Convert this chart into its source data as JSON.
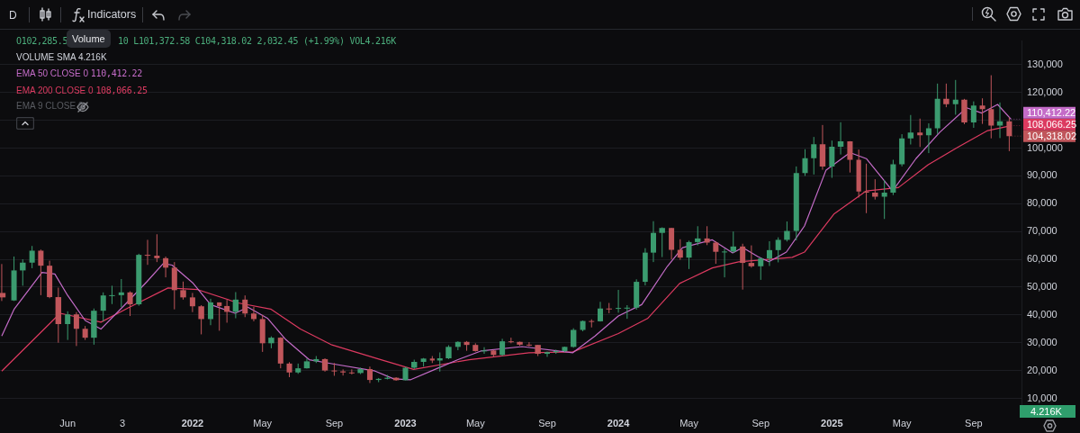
{
  "chart_data": {
    "type": "candlestick",
    "x": [
      "2021-02-08",
      "2021-03-01",
      "2021-03-16",
      "2021-04-01",
      "2021-04-16",
      "2021-05-01",
      "2021-05-16",
      "2021-06-01",
      "2021-06-16",
      "2021-07-01",
      "2021-07-16",
      "2021-08-01",
      "2021-08-16",
      "2021-09-01",
      "2021-09-16",
      "2021-10-01",
      "2021-10-16",
      "2021-11-01",
      "2021-11-16",
      "2021-12-01",
      "2021-12-16",
      "2022-01-01",
      "2022-01-16",
      "2022-02-01",
      "2022-02-16",
      "2022-03-01",
      "2022-03-16",
      "2022-04-01",
      "2022-04-16",
      "2022-05-01",
      "2022-05-16",
      "2022-06-01",
      "2022-06-16",
      "2022-07-01",
      "2022-07-16",
      "2022-08-01",
      "2022-08-16",
      "2022-09-01",
      "2022-09-16",
      "2022-10-01",
      "2022-10-16",
      "2022-11-01",
      "2022-11-16",
      "2022-12-01",
      "2022-12-16",
      "2023-01-01",
      "2023-01-16",
      "2023-02-01",
      "2023-02-16",
      "2023-03-01",
      "2023-03-16",
      "2023-04-01",
      "2023-04-16",
      "2023-05-01",
      "2023-05-16",
      "2023-06-01",
      "2023-06-16",
      "2023-07-01",
      "2023-07-16",
      "2023-08-01",
      "2023-08-16",
      "2023-09-01",
      "2023-09-16",
      "2023-10-01",
      "2023-10-16",
      "2023-11-01",
      "2023-11-16",
      "2023-12-01",
      "2023-12-16",
      "2024-01-01",
      "2024-01-16",
      "2024-02-01",
      "2024-02-16",
      "2024-03-01",
      "2024-03-16",
      "2024-04-01",
      "2024-04-16",
      "2024-05-01",
      "2024-05-16",
      "2024-06-01",
      "2024-06-16",
      "2024-07-01",
      "2024-07-16",
      "2024-08-01",
      "2024-08-16",
      "2024-09-01",
      "2024-09-16",
      "2024-10-01",
      "2024-10-16",
      "2024-11-01",
      "2024-11-16",
      "2024-12-01",
      "2024-12-16",
      "2025-01-01",
      "2025-01-16",
      "2025-02-01",
      "2025-02-16",
      "2025-03-01",
      "2025-03-16",
      "2025-04-01",
      "2025-04-16",
      "2025-05-01",
      "2025-05-16",
      "2025-06-01",
      "2025-06-16",
      "2025-07-01",
      "2025-07-16",
      "2025-08-01",
      "2025-08-16",
      "2025-09-01",
      "2025-09-16",
      "2025-10-01",
      "2025-10-16",
      "2025-11-01"
    ],
    "ohlc": [
      [
        47900,
        58300,
        45000,
        46300
      ],
      [
        45200,
        61000,
        45000,
        56000
      ],
      [
        56000,
        60000,
        50500,
        58800
      ],
      [
        58800,
        64800,
        56800,
        63100
      ],
      [
        63100,
        63500,
        47100,
        57700
      ],
      [
        57700,
        59500,
        46000,
        46400
      ],
      [
        46400,
        49800,
        30000,
        36700
      ],
      [
        36700,
        41300,
        31000,
        40200
      ],
      [
        40200,
        41000,
        28800,
        35000
      ],
      [
        35000,
        36000,
        31000,
        31800
      ],
      [
        31800,
        42300,
        29300,
        41500
      ],
      [
        41500,
        48100,
        37600,
        47000
      ],
      [
        47000,
        50500,
        43900,
        47100
      ],
      [
        47100,
        52900,
        42800,
        48100
      ],
      [
        48100,
        48500,
        39600,
        43800
      ],
      [
        43800,
        62000,
        43300,
        61600
      ],
      [
        61600,
        67000,
        58000,
        61300
      ],
      [
        61300,
        69000,
        59000,
        60400
      ],
      [
        60400,
        61000,
        53500,
        57000
      ],
      [
        57000,
        59000,
        42000,
        48900
      ],
      [
        48900,
        52000,
        45500,
        46300
      ],
      [
        46300,
        47900,
        41000,
        43100
      ],
      [
        43100,
        43500,
        33000,
        38500
      ],
      [
        38500,
        45800,
        36300,
        44500
      ],
      [
        44500,
        44500,
        34300,
        43200
      ],
      [
        43200,
        45400,
        37200,
        41100
      ],
      [
        41100,
        48200,
        38800,
        45500
      ],
      [
        45500,
        47000,
        39200,
        40500
      ],
      [
        40500,
        42900,
        37700,
        38500
      ],
      [
        38500,
        40000,
        26700,
        29800
      ],
      [
        29800,
        32300,
        28000,
        31800
      ],
      [
        31800,
        32000,
        20800,
        22500
      ],
      [
        22500,
        23000,
        17600,
        19300
      ],
      [
        19300,
        22500,
        18800,
        20800
      ],
      [
        20800,
        24300,
        20700,
        23300
      ],
      [
        23300,
        25200,
        22700,
        24100
      ],
      [
        24100,
        24400,
        19600,
        20000
      ],
      [
        20000,
        22700,
        18100,
        19700
      ],
      [
        19700,
        20400,
        18200,
        19300
      ],
      [
        19300,
        20400,
        18600,
        19100
      ],
      [
        19100,
        21000,
        18700,
        20500
      ],
      [
        20500,
        21400,
        15500,
        16600
      ],
      [
        16600,
        17300,
        15800,
        17000
      ],
      [
        17000,
        18400,
        16800,
        17400
      ],
      [
        17400,
        17600,
        16300,
        16500
      ],
      [
        16500,
        21300,
        16500,
        21000
      ],
      [
        21000,
        23900,
        20500,
        23100
      ],
      [
        23100,
        24500,
        21400,
        24300
      ],
      [
        24300,
        25200,
        22700,
        23600
      ],
      [
        23600,
        26500,
        19600,
        24400
      ],
      [
        24400,
        29100,
        24100,
        28500
      ],
      [
        28500,
        30500,
        27300,
        30300
      ],
      [
        30300,
        30600,
        27100,
        29200
      ],
      [
        29200,
        29800,
        26800,
        27000
      ],
      [
        27000,
        28400,
        26000,
        27200
      ],
      [
        27200,
        27400,
        24800,
        25600
      ],
      [
        25600,
        31400,
        25200,
        30500
      ],
      [
        30500,
        31800,
        29800,
        30300
      ],
      [
        30300,
        30400,
        28900,
        29300
      ],
      [
        29300,
        30200,
        28700,
        29200
      ],
      [
        29200,
        29200,
        25200,
        26000
      ],
      [
        26000,
        26800,
        24900,
        26600
      ],
      [
        26600,
        27500,
        26000,
        27000
      ],
      [
        27000,
        28600,
        26600,
        28500
      ],
      [
        28500,
        35200,
        28200,
        34600
      ],
      [
        34600,
        38000,
        34100,
        37800
      ],
      [
        37800,
        38400,
        35500,
        37700
      ],
      [
        37700,
        44700,
        37600,
        42300
      ],
      [
        42300,
        44300,
        40600,
        42200
      ],
      [
        42200,
        49000,
        40800,
        42500
      ],
      [
        42500,
        43500,
        38600,
        42600
      ],
      [
        42600,
        52800,
        41900,
        51900
      ],
      [
        51900,
        64000,
        50600,
        62400
      ],
      [
        62400,
        73700,
        59000,
        69500
      ],
      [
        69500,
        71500,
        60800,
        71300
      ],
      [
        71300,
        71300,
        60000,
        63400
      ],
      [
        63400,
        67200,
        59800,
        60600
      ],
      [
        60600,
        66700,
        56500,
        66200
      ],
      [
        66200,
        71900,
        65000,
        67500
      ],
      [
        67500,
        71900,
        65100,
        66000
      ],
      [
        66000,
        66500,
        58400,
        62700
      ],
      [
        62700,
        63800,
        53500,
        62800
      ],
      [
        62800,
        70000,
        62300,
        64600
      ],
      [
        64600,
        65600,
        49100,
        58700
      ],
      [
        58700,
        65000,
        57000,
        57500
      ],
      [
        57500,
        60600,
        52600,
        60300
      ],
      [
        60300,
        66500,
        57600,
        63300
      ],
      [
        63300,
        67900,
        58900,
        67000
      ],
      [
        67000,
        73600,
        66400,
        70200
      ],
      [
        70200,
        93400,
        66800,
        91000
      ],
      [
        91000,
        99600,
        90000,
        96400
      ],
      [
        96400,
        104000,
        90500,
        101400
      ],
      [
        101400,
        108300,
        92200,
        93400
      ],
      [
        93400,
        102700,
        89300,
        100500
      ],
      [
        100500,
        109300,
        97700,
        102400
      ],
      [
        102400,
        102500,
        91200,
        95800
      ],
      [
        95800,
        99500,
        82200,
        84400
      ],
      [
        84400,
        94400,
        76600,
        84000
      ],
      [
        84000,
        88800,
        81500,
        82500
      ],
      [
        82500,
        88500,
        74500,
        84000
      ],
      [
        84000,
        95800,
        83100,
        94200
      ],
      [
        94200,
        105000,
        93400,
        103500
      ],
      [
        103500,
        111900,
        101300,
        105600
      ],
      [
        105600,
        110600,
        100400,
        104600
      ],
      [
        104600,
        108900,
        98200,
        107100
      ],
      [
        107100,
        123200,
        105100,
        117700
      ],
      [
        117700,
        123200,
        114700,
        115800
      ],
      [
        115800,
        124500,
        112000,
        117400
      ],
      [
        117400,
        117700,
        108600,
        109200
      ],
      [
        109200,
        116800,
        107300,
        115300
      ],
      [
        115300,
        117900,
        108700,
        114000
      ],
      [
        114000,
        126200,
        103500,
        108100
      ],
      [
        108100,
        116400,
        103600,
        109600
      ],
      [
        109600,
        111000,
        98900,
        104318.02
      ]
    ],
    "series": [
      {
        "name": "EMA 50 CLOSE 0",
        "type": "line",
        "color": "#c46cc8",
        "x": [
          "2021-02-08",
          "2021-03-01",
          "2021-04-18",
          "2021-05-10",
          "2021-06-01",
          "2021-07-01",
          "2021-07-28",
          "2021-09-10",
          "2021-10-15",
          "2021-11-12",
          "2021-11-27",
          "2022-01-01",
          "2022-02-01",
          "2022-03-15",
          "2022-04-06",
          "2022-05-10",
          "2022-06-10",
          "2022-07-20",
          "2022-09-01",
          "2022-11-10",
          "2022-12-12",
          "2023-01-10",
          "2023-02-25",
          "2023-04-01",
          "2023-05-10",
          "2023-07-20",
          "2023-10-15",
          "2023-11-22",
          "2024-01-01",
          "2024-02-10",
          "2024-03-25",
          "2024-04-20",
          "2024-06-10",
          "2024-07-15",
          "2024-08-01",
          "2024-08-27",
          "2024-09-15",
          "2024-10-15",
          "2024-11-15",
          "2024-12-22",
          "2025-02-01",
          "2025-03-01",
          "2025-04-15",
          "2025-05-25",
          "2025-07-05",
          "2025-08-20",
          "2025-09-15",
          "2025-10-12",
          "2025-11-04"
        ],
        "values": [
          32400,
          42000,
          55300,
          54700,
          47000,
          38000,
          34900,
          44300,
          52000,
          58500,
          57900,
          51600,
          43700,
          40600,
          42800,
          38700,
          31100,
          23900,
          22300,
          19800,
          17000,
          16700,
          20800,
          23900,
          27000,
          28600,
          26400,
          32400,
          39600,
          43700,
          57500,
          64200,
          67000,
          62300,
          64200,
          61000,
          59100,
          62600,
          72000,
          92100,
          98400,
          96200,
          84600,
          96200,
          105700,
          114500,
          112600,
          115700,
          110412.22
        ]
      },
      {
        "name": "EMA 200 CLOSE 0",
        "type": "line",
        "color": "#dc3a60",
        "x": [
          "2021-02-08",
          "2021-05-19",
          "2021-07-28",
          "2021-09-15",
          "2021-11-20",
          "2022-01-10",
          "2022-03-20",
          "2022-05-15",
          "2022-07-05",
          "2022-08-28",
          "2022-11-15",
          "2023-01-15",
          "2023-04-20",
          "2023-08-01",
          "2023-10-15",
          "2024-01-01",
          "2024-02-20",
          "2024-04-15",
          "2024-06-10",
          "2024-07-25",
          "2024-10-25",
          "2024-11-15",
          "2025-01-05",
          "2025-03-01",
          "2025-04-25",
          "2025-06-15",
          "2025-08-05",
          "2025-09-25",
          "2025-11-04"
        ],
        "values": [
          19800,
          40600,
          37400,
          42800,
          49700,
          49100,
          44300,
          42100,
          34900,
          29200,
          24200,
          20400,
          23900,
          26400,
          26700,
          33300,
          38700,
          51300,
          56900,
          59100,
          60700,
          62600,
          76400,
          84600,
          85800,
          94000,
          100300,
          106300,
          108066.25
        ]
      }
    ],
    "xlim": [
      "2021-02-05",
      "2025-11-22"
    ],
    "xticks": [
      {
        "value": "2021-06-01",
        "label": "Jun"
      },
      {
        "value": "2021-09-03",
        "label": "3"
      },
      {
        "value": "2022-01-01",
        "label": "2022"
      },
      {
        "value": "2022-05-01",
        "label": "May"
      },
      {
        "value": "2022-09-01",
        "label": "Sep"
      },
      {
        "value": "2023-01-01",
        "label": "2023"
      },
      {
        "value": "2023-05-01",
        "label": "May"
      },
      {
        "value": "2023-09-01",
        "label": "Sep"
      },
      {
        "value": "2024-01-01",
        "label": "2024"
      },
      {
        "value": "2024-05-01",
        "label": "May"
      },
      {
        "value": "2024-09-01",
        "label": "Sep"
      },
      {
        "value": "2025-01-01",
        "label": "2025"
      },
      {
        "value": "2025-05-01",
        "label": "May"
      },
      {
        "value": "2025-09-01",
        "label": "Sep"
      }
    ],
    "ylim": [
      4000,
      138500
    ],
    "yticks": [
      {
        "value": 10000,
        "label": "10,000"
      },
      {
        "value": 20000,
        "label": "20,000"
      },
      {
        "value": 30000,
        "label": "30,000"
      },
      {
        "value": 40000,
        "label": "40,000"
      },
      {
        "value": 50000,
        "label": "50,000"
      },
      {
        "value": 60000,
        "label": "60,000"
      },
      {
        "value": 70000,
        "label": "70,000"
      },
      {
        "value": 80000,
        "label": "80,000"
      },
      {
        "value": 90000,
        "label": "90,000"
      },
      {
        "value": 100000,
        "label": "100,000"
      },
      {
        "value": 110000,
        "label": null
      },
      {
        "value": 120000,
        "label": "120,000"
      },
      {
        "value": 130000,
        "label": "130,000"
      }
    ],
    "grid": "y",
    "legend": "top left",
    "annotations": [
      "D",
      "Indicators",
      "O102,285.5",
      "10 L101,372.58 C104,318.02 2,032.45 (+1.99%) VOL4.216K",
      "Volume",
      "VOLUME SMA 4.216K",
      "EMA 9 CLOSE 0",
      "4.216K",
      {
        "text": "110,412.22",
        "x": "2025-11-04",
        "y": 110412.22
      },
      {
        "text": "108,066.25",
        "x": "2025-11-04",
        "y": 108066.25
      },
      {
        "text": "104,318.02",
        "x": "2025-11-01",
        "y": 104318.02
      }
    ]
  }
}
